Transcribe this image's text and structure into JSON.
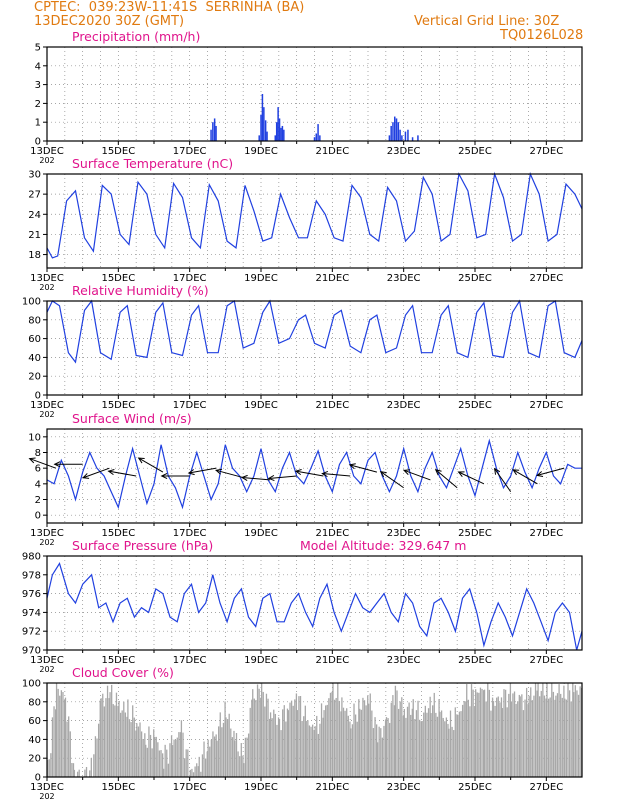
{
  "header": {
    "line1": "CPTEC:  039:23W-11:41S  SERRINHA (BA)",
    "line2": "13DEC2020 30Z (GMT)",
    "grid_note": "Vertical Grid Line: 30Z",
    "code": "TQ0126L028"
  },
  "colors": {
    "header": "#e07a10",
    "title": "#e0148c",
    "line": "#2040e0",
    "cloud": "#a8a8a8",
    "arrow": "#000000"
  },
  "x_labels": [
    "13DEC",
    "15DEC",
    "17DEC",
    "19DEC",
    "21DEC",
    "23DEC",
    "25DEC",
    "27DEC"
  ],
  "x_sub": "202",
  "chart_data": [
    {
      "type": "bar",
      "title": "Precipitation (mm/h)",
      "ylim": [
        0,
        5
      ],
      "yticks": [
        0,
        1,
        2,
        3,
        4,
        5
      ],
      "grid": true,
      "bars": [
        {
          "day": 17.6,
          "value": 0.6
        },
        {
          "day": 17.65,
          "value": 1.0
        },
        {
          "day": 17.7,
          "value": 1.2
        },
        {
          "day": 17.74,
          "value": 0.8
        },
        {
          "day": 18.95,
          "value": 0.3
        },
        {
          "day": 19.0,
          "value": 1.4
        },
        {
          "day": 19.04,
          "value": 2.5
        },
        {
          "day": 19.08,
          "value": 1.8
        },
        {
          "day": 19.13,
          "value": 1.1
        },
        {
          "day": 19.17,
          "value": 0.5
        },
        {
          "day": 19.4,
          "value": 0.3
        },
        {
          "day": 19.44,
          "value": 1.0
        },
        {
          "day": 19.48,
          "value": 1.8
        },
        {
          "day": 19.52,
          "value": 1.2
        },
        {
          "day": 19.56,
          "value": 0.7
        },
        {
          "day": 19.6,
          "value": 0.8
        },
        {
          "day": 19.64,
          "value": 0.6
        },
        {
          "day": 20.5,
          "value": 0.2
        },
        {
          "day": 20.55,
          "value": 0.4
        },
        {
          "day": 20.6,
          "value": 0.9
        },
        {
          "day": 20.65,
          "value": 0.3
        },
        {
          "day": 22.6,
          "value": 0.3
        },
        {
          "day": 22.65,
          "value": 0.8
        },
        {
          "day": 22.7,
          "value": 1.0
        },
        {
          "day": 22.75,
          "value": 1.3
        },
        {
          "day": 22.8,
          "value": 1.2
        },
        {
          "day": 22.85,
          "value": 1.0
        },
        {
          "day": 22.9,
          "value": 0.6
        },
        {
          "day": 22.95,
          "value": 0.3
        },
        {
          "day": 23.05,
          "value": 0.5
        },
        {
          "day": 23.12,
          "value": 0.6
        },
        {
          "day": 23.25,
          "value": 0.2
        },
        {
          "day": 23.4,
          "value": 0.3
        }
      ]
    },
    {
      "type": "line",
      "title": "Surface Temperature (nC)",
      "ylim": [
        16,
        30
      ],
      "yticks": [
        18,
        21,
        24,
        27,
        30
      ],
      "grid": true,
      "x": [
        13.0,
        13.15,
        13.3,
        13.55,
        13.8,
        14.05,
        14.3,
        14.55,
        14.8,
        15.05,
        15.3,
        15.55,
        15.8,
        16.05,
        16.3,
        16.55,
        16.8,
        17.05,
        17.3,
        17.55,
        17.8,
        18.05,
        18.3,
        18.55,
        18.8,
        19.05,
        19.3,
        19.55,
        19.8,
        20.05,
        20.3,
        20.55,
        20.8,
        21.05,
        21.3,
        21.55,
        21.8,
        22.05,
        22.3,
        22.55,
        22.8,
        23.05,
        23.3,
        23.55,
        23.8,
        24.05,
        24.3,
        24.55,
        24.8,
        25.05,
        25.3,
        25.55,
        25.8,
        26.05,
        26.3,
        26.55,
        26.8,
        27.05,
        27.3,
        27.55,
        27.8,
        28.0
      ],
      "values": [
        19.0,
        17.5,
        17.8,
        26.0,
        27.5,
        20.5,
        18.5,
        28.3,
        27.0,
        21.0,
        19.5,
        28.8,
        27.0,
        21.0,
        19.0,
        28.6,
        26.5,
        20.5,
        19.0,
        28.4,
        26.0,
        20.0,
        19.0,
        28.3,
        24.5,
        20.0,
        20.5,
        27.0,
        23.5,
        20.5,
        20.5,
        26.0,
        24.0,
        20.5,
        20.0,
        28.3,
        26.5,
        21.0,
        20.0,
        28.0,
        26.0,
        20.0,
        21.5,
        29.5,
        27.0,
        20.0,
        21.0,
        30.0,
        27.5,
        20.5,
        21.0,
        30.0,
        26.5,
        20.0,
        21.0,
        30.0,
        27.0,
        20.0,
        21.0,
        28.5,
        27.0,
        24.8
      ]
    },
    {
      "type": "line",
      "title": "Relative Humidity (%)",
      "ylim": [
        0,
        100
      ],
      "yticks": [
        0,
        20,
        40,
        60,
        80,
        100
      ],
      "grid": true,
      "x": [
        13.0,
        13.15,
        13.35,
        13.6,
        13.8,
        14.05,
        14.25,
        14.5,
        14.8,
        15.05,
        15.25,
        15.5,
        15.8,
        16.05,
        16.25,
        16.5,
        16.8,
        17.05,
        17.25,
        17.5,
        17.8,
        18.05,
        18.25,
        18.5,
        18.8,
        19.05,
        19.25,
        19.5,
        19.8,
        20.05,
        20.25,
        20.5,
        20.8,
        21.05,
        21.25,
        21.5,
        21.8,
        22.05,
        22.25,
        22.5,
        22.8,
        23.05,
        23.25,
        23.5,
        23.8,
        24.05,
        24.25,
        24.5,
        24.8,
        25.05,
        25.25,
        25.5,
        25.8,
        26.05,
        26.25,
        26.5,
        26.8,
        27.05,
        27.25,
        27.5,
        27.8,
        28.0
      ],
      "values": [
        88,
        100,
        95,
        45,
        35,
        90,
        100,
        45,
        38,
        88,
        95,
        42,
        40,
        88,
        98,
        45,
        42,
        85,
        95,
        45,
        45,
        95,
        100,
        50,
        55,
        88,
        100,
        55,
        60,
        80,
        85,
        55,
        50,
        85,
        90,
        52,
        45,
        80,
        85,
        45,
        50,
        85,
        95,
        45,
        45,
        85,
        95,
        45,
        40,
        88,
        98,
        42,
        40,
        88,
        100,
        45,
        40,
        95,
        100,
        45,
        40,
        58
      ]
    },
    {
      "type": "line",
      "title": "Surface Wind (m/s)",
      "ylim": [
        -1,
        11
      ],
      "yticks": [
        0,
        2,
        4,
        6,
        8,
        10
      ],
      "grid": true,
      "x": [
        13.0,
        13.2,
        13.4,
        13.6,
        13.8,
        14.0,
        14.2,
        14.4,
        14.6,
        14.8,
        15.0,
        15.2,
        15.4,
        15.6,
        15.8,
        16.0,
        16.2,
        16.4,
        16.6,
        16.8,
        17.0,
        17.2,
        17.4,
        17.6,
        17.8,
        18.0,
        18.2,
        18.4,
        18.6,
        18.8,
        19.0,
        19.2,
        19.4,
        19.6,
        19.8,
        20.0,
        20.2,
        20.4,
        20.6,
        20.8,
        21.0,
        21.2,
        21.4,
        21.6,
        21.8,
        22.0,
        22.2,
        22.4,
        22.6,
        22.8,
        23.0,
        23.2,
        23.4,
        23.6,
        23.8,
        24.0,
        24.2,
        24.4,
        24.6,
        24.8,
        25.0,
        25.2,
        25.4,
        25.6,
        25.8,
        26.0,
        26.2,
        26.4,
        26.6,
        26.8,
        27.0,
        27.2,
        27.4,
        27.6,
        27.8,
        28.0
      ],
      "values": [
        4.5,
        4,
        7,
        5,
        2,
        5.5,
        8,
        6,
        5,
        3,
        1,
        5,
        8.5,
        5,
        1.5,
        4,
        9,
        5,
        3.5,
        1,
        5,
        8,
        5,
        2,
        4,
        9,
        6,
        5,
        3,
        5,
        8.5,
        4.5,
        3,
        6,
        8,
        5,
        4,
        6,
        8.2,
        5,
        3,
        6.5,
        8,
        5,
        4,
        7,
        8,
        5,
        3,
        5,
        8.5,
        5,
        3,
        6,
        8,
        5,
        3.5,
        6,
        8.5,
        5,
        2.5,
        6,
        9.5,
        6,
        3.5,
        5,
        8,
        5.5,
        3.5,
        6,
        8,
        5,
        4,
        6.5,
        6,
        6
      ],
      "arrows": [
        {
          "day": 13.25,
          "speed": 6.0,
          "dir_deg": 20
        },
        {
          "day": 14.0,
          "speed": 6.5,
          "dir_deg": 0
        },
        {
          "day": 14.75,
          "speed": 6.0,
          "dir_deg": -20
        },
        {
          "day": 15.5,
          "speed": 5.0,
          "dir_deg": 10
        },
        {
          "day": 16.25,
          "speed": 5.5,
          "dir_deg": 30
        },
        {
          "day": 17.0,
          "speed": 5.0,
          "dir_deg": 0
        },
        {
          "day": 17.75,
          "speed": 6.0,
          "dir_deg": -10
        },
        {
          "day": 18.5,
          "speed": 4.8,
          "dir_deg": 15
        },
        {
          "day": 19.25,
          "speed": 4.5,
          "dir_deg": 5
        },
        {
          "day": 20.0,
          "speed": 5.0,
          "dir_deg": -5
        },
        {
          "day": 20.75,
          "speed": 5.0,
          "dir_deg": 10
        },
        {
          "day": 21.5,
          "speed": 5.0,
          "dir_deg": 5
        },
        {
          "day": 22.25,
          "speed": 5.5,
          "dir_deg": 15
        },
        {
          "day": 23.0,
          "speed": 3.5,
          "dir_deg": 35
        },
        {
          "day": 23.75,
          "speed": 4.5,
          "dir_deg": 20
        },
        {
          "day": 24.5,
          "speed": 3.5,
          "dir_deg": 40
        },
        {
          "day": 25.25,
          "speed": 4.0,
          "dir_deg": 25
        },
        {
          "day": 26.0,
          "speed": 3.0,
          "dir_deg": 55
        },
        {
          "day": 26.75,
          "speed": 4.0,
          "dir_deg": 30
        },
        {
          "day": 27.5,
          "speed": 6.0,
          "dir_deg": -15
        }
      ]
    },
    {
      "type": "line",
      "title": "Surface Pressure (hPa)",
      "annotation": "Model Altitude: 329.647 m",
      "ylim": [
        970,
        980
      ],
      "yticks": [
        970,
        972,
        974,
        976,
        978,
        980
      ],
      "grid": true,
      "x": [
        13.0,
        13.15,
        13.35,
        13.6,
        13.8,
        14.0,
        14.25,
        14.45,
        14.65,
        14.85,
        15.05,
        15.25,
        15.45,
        15.65,
        15.85,
        16.05,
        16.25,
        16.45,
        16.65,
        16.85,
        17.05,
        17.25,
        17.45,
        17.65,
        17.85,
        18.05,
        18.25,
        18.45,
        18.65,
        18.85,
        19.05,
        19.25,
        19.45,
        19.65,
        19.85,
        20.05,
        20.25,
        20.45,
        20.65,
        20.85,
        21.05,
        21.25,
        21.45,
        21.65,
        21.85,
        22.05,
        22.25,
        22.45,
        22.65,
        22.85,
        23.05,
        23.25,
        23.45,
        23.65,
        23.85,
        24.05,
        24.25,
        24.45,
        24.65,
        24.85,
        25.05,
        25.25,
        25.45,
        25.65,
        25.85,
        26.05,
        26.25,
        26.45,
        26.65,
        26.85,
        27.05,
        27.25,
        27.45,
        27.65,
        27.85,
        28.0
      ],
      "values": [
        975.5,
        978,
        979.2,
        976,
        975,
        977,
        978,
        974.5,
        975,
        973,
        975,
        975.5,
        973.5,
        974.5,
        974,
        976.5,
        976,
        973.5,
        973,
        976,
        977,
        974,
        975,
        978,
        975,
        973,
        975.5,
        976.5,
        973.5,
        972.5,
        975.5,
        976,
        973,
        973,
        975,
        976,
        974,
        972.5,
        975.5,
        977,
        974,
        972,
        974,
        976,
        974.5,
        974,
        975,
        976,
        974,
        973,
        976,
        975,
        972.5,
        971.5,
        975,
        975.5,
        974,
        972,
        975.5,
        976.5,
        974,
        970.5,
        973,
        975,
        973.5,
        971.5,
        974,
        976.5,
        975,
        973,
        971,
        974,
        975,
        974,
        970,
        972
      ]
    },
    {
      "type": "bar",
      "title": "Cloud Cover (%)",
      "ylim": [
        0,
        100
      ],
      "yticks": [
        0,
        20,
        40,
        60,
        80,
        100
      ],
      "grid": true,
      "x": [
        13.0,
        13.25,
        13.5,
        13.75,
        14.0,
        14.25,
        14.5,
        14.75,
        15.0,
        15.25,
        15.5,
        15.75,
        16.0,
        16.25,
        16.5,
        16.75,
        17.0,
        17.25,
        17.5,
        17.75,
        18.0,
        18.25,
        18.5,
        18.75,
        19.0,
        19.25,
        19.5,
        19.75,
        20.0,
        20.25,
        20.5,
        20.75,
        21.0,
        21.25,
        21.5,
        21.75,
        22.0,
        22.25,
        22.5,
        22.75,
        23.0,
        23.25,
        23.5,
        23.75,
        24.0,
        24.25,
        24.5,
        24.75,
        25.0,
        25.25,
        25.5,
        25.75,
        26.0,
        26.25,
        26.5,
        26.75,
        27.0,
        27.25,
        27.5,
        27.75,
        28.0
      ],
      "values": [
        5,
        95,
        85,
        5,
        0,
        10,
        80,
        90,
        75,
        70,
        60,
        40,
        45,
        20,
        35,
        50,
        5,
        15,
        35,
        50,
        70,
        40,
        20,
        85,
        95,
        70,
        60,
        75,
        85,
        60,
        50,
        70,
        95,
        80,
        60,
        75,
        85,
        45,
        55,
        90,
        70,
        75,
        65,
        80,
        70,
        55,
        65,
        85,
        90,
        95,
        80,
        85,
        88,
        80,
        85,
        95,
        90,
        92,
        90,
        93,
        92
      ]
    }
  ]
}
